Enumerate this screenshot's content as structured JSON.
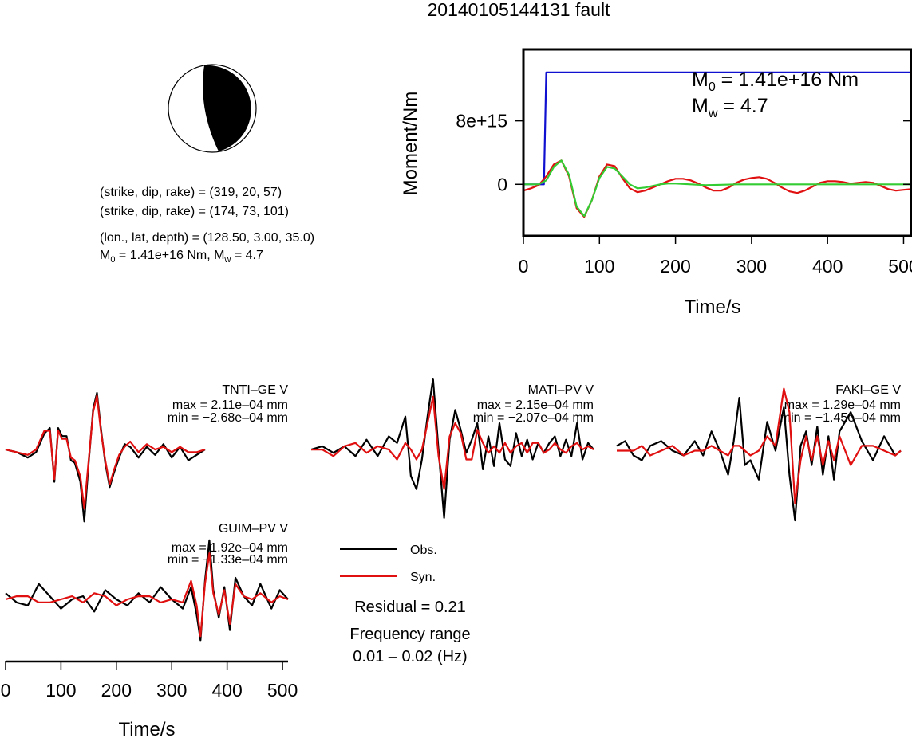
{
  "title": "20140105144131 fault",
  "mechanism": {
    "nodal_plane_1": "(strike, dip, rake) = (319, 20, 57)",
    "nodal_plane_2": "(strike, dip, rake) = (174, 73, 101)",
    "location": "(lon., lat, depth) = (128.50, 3.00, 35.0)",
    "moment_line": {
      "m0_label": "M",
      "m0_sub": "0",
      "m0_value": " = 1.41e+16 Nm, M",
      "mw_sub": "w",
      "mw_value": " = 4.7"
    }
  },
  "colors": {
    "cumulative_moment": "#1010d0",
    "moment_rate_red": "#e01010",
    "moment_rate_green": "#33cc33",
    "observed": "#000000",
    "synthetic": "#e01010",
    "beachball_compressional": "#000000",
    "beachball_dilatational": "#ffffff"
  },
  "chart_data": [
    {
      "type": "line",
      "id": "moment-function",
      "ylabel": "Moment/Nm",
      "xlabel": "Time/s",
      "xlim": [
        0,
        510
      ],
      "ylim": [
        -6500000000000000.0,
        1.7e+16
      ],
      "xticks": [
        "0",
        "100",
        "200",
        "300",
        "400",
        "500"
      ],
      "xtick_values": [
        0,
        100,
        200,
        300,
        400,
        500
      ],
      "yticks": [
        "0",
        "8e+15"
      ],
      "ytick_values": [
        0,
        8000000000000000.0
      ],
      "annotation": {
        "m0_label": "M",
        "m0_sub": "0",
        "m0_value": " = 1.41e+16 Nm",
        "mw_label": "M",
        "mw_sub": "w",
        "mw_value": " = 4.7"
      },
      "series": [
        {
          "color": "#1010d0",
          "x": [
            0,
            27,
            30,
            510
          ],
          "y": [
            0,
            0,
            1.41e+16,
            1.41e+16
          ]
        },
        {
          "color": "#e01010",
          "x": [
            0,
            10,
            20,
            30,
            40,
            50,
            60,
            70,
            80,
            90,
            100,
            110,
            120,
            130,
            140,
            150,
            160,
            170,
            180,
            190,
            200,
            210,
            220,
            230,
            240,
            250,
            260,
            270,
            280,
            290,
            300,
            310,
            320,
            330,
            340,
            350,
            360,
            370,
            380,
            390,
            400,
            410,
            420,
            430,
            440,
            450,
            460,
            470,
            480,
            490,
            500,
            510
          ],
          "y": [
            -800000000000000.0,
            -500000000000000.0,
            -100000000000000.0,
            1000000000000000.0,
            2500000000000000.0,
            3000000000000000.0,
            1000000000000000.0,
            -3000000000000000.0,
            -4100000000000000.0,
            -2000000000000000.0,
            1000000000000000.0,
            2500000000000000.0,
            2300000000000000.0,
            800000000000000.0,
            -500000000000000.0,
            -1000000000000000.0,
            -800000000000000.0,
            -400000000000000.0,
            0,
            400000000000000.0,
            700000000000000.0,
            700000000000000.0,
            500000000000000.0,
            100000000000000.0,
            -400000000000000.0,
            -800000000000000.0,
            -800000000000000.0,
            -400000000000000.0,
            200000000000000.0,
            600000000000000.0,
            800000000000000.0,
            900000000000000.0,
            700000000000000.0,
            200000000000000.0,
            -400000000000000.0,
            -900000000000000.0,
            -1100000000000000.0,
            -800000000000000.0,
            -300000000000000.0,
            200000000000000.0,
            400000000000000.0,
            400000000000000.0,
            300000000000000.0,
            100000000000000.0,
            200000000000000.0,
            300000000000000.0,
            200000000000000.0,
            -200000000000000.0,
            -600000000000000.0,
            -800000000000000.0,
            -700000000000000.0,
            -600000000000000.0
          ]
        },
        {
          "color": "#33cc33",
          "x": [
            0,
            10,
            20,
            30,
            40,
            50,
            60,
            70,
            80,
            90,
            100,
            110,
            120,
            130,
            140,
            150,
            160,
            170,
            180,
            190,
            200,
            220,
            240,
            260,
            280,
            300,
            510
          ],
          "y": [
            0,
            0,
            0,
            500000000000000.0,
            2200000000000000.0,
            3000000000000000.0,
            1200000000000000.0,
            -2800000000000000.0,
            -4000000000000000.0,
            -2000000000000000.0,
            800000000000000.0,
            2200000000000000.0,
            2000000000000000.0,
            1000000000000000.0,
            0,
            -500000000000000.0,
            -400000000000000.0,
            -200000000000000.0,
            0,
            100000000000000.0,
            100000000000000.0,
            0,
            -100000000000000.0,
            -50000000000000.0,
            0,
            0,
            0
          ]
        }
      ]
    },
    {
      "type": "line",
      "id": "waveform-TNTI-GE",
      "station": "TNTI–GE V",
      "max": "max = 2.11e–04 mm",
      "min": "min = −2.68e–04 mm",
      "xlim": [
        0,
        510
      ],
      "ylim": [
        -2.7,
        2.2
      ],
      "series": [
        {
          "name": "Obs.",
          "color": "#000000",
          "x": [
            0,
            20,
            40,
            55,
            70,
            80,
            88,
            95,
            102,
            110,
            118,
            125,
            135,
            142,
            150,
            158,
            165,
            172,
            180,
            188,
            195,
            205,
            215,
            225,
            240,
            255,
            270,
            285,
            300,
            315,
            330,
            345,
            360
          ],
          "y": [
            0,
            -0.1,
            -0.3,
            -0.1,
            0.6,
            0.8,
            -1.2,
            0.8,
            0.5,
            0.5,
            -0.4,
            -0.5,
            -1.2,
            -2.68,
            -0.5,
            1.5,
            2.11,
            0.8,
            -0.5,
            -1.4,
            -0.9,
            -0.3,
            0.2,
            0.1,
            -0.3,
            0.1,
            -0.2,
            0.2,
            -0.3,
            0.1,
            -0.4,
            -0.2,
            0
          ]
        },
        {
          "name": "Syn.",
          "color": "#e01010",
          "x": [
            0,
            20,
            40,
            55,
            70,
            80,
            88,
            95,
            102,
            110,
            118,
            125,
            135,
            142,
            150,
            158,
            165,
            172,
            180,
            188,
            195,
            205,
            215,
            225,
            240,
            255,
            270,
            285,
            300,
            315,
            330,
            345,
            360
          ],
          "y": [
            0,
            -0.1,
            -0.2,
            0,
            0.7,
            0.7,
            -1.1,
            0.7,
            0.4,
            0.4,
            -0.3,
            -0.4,
            -1,
            -2.2,
            -0.4,
            1.4,
            2,
            0.7,
            -0.4,
            -1.3,
            -0.8,
            -0.2,
            0.1,
            0.3,
            -0.1,
            0.2,
            0,
            0.1,
            -0.1,
            0.1,
            -0.1,
            -0.1,
            0
          ]
        }
      ]
    },
    {
      "type": "line",
      "id": "waveform-MATI-PV",
      "station": "MATI–PV V",
      "max": "max = 2.15e–04 mm",
      "min": "min = −2.07e–04 mm",
      "xlim": [
        0,
        510
      ],
      "ylim": [
        -2.1,
        2.2
      ],
      "series": [
        {
          "name": "Obs.",
          "color": "#000000",
          "x": [
            0,
            20,
            40,
            60,
            80,
            100,
            120,
            140,
            155,
            170,
            180,
            190,
            200,
            210,
            220,
            230,
            240,
            250,
            260,
            270,
            280,
            290,
            300,
            310,
            320,
            330,
            340,
            350,
            360,
            370,
            380,
            390,
            400,
            410,
            420,
            430,
            440,
            450,
            460,
            470,
            480,
            490,
            500,
            510
          ],
          "y": [
            0,
            0.1,
            -0.1,
            0.1,
            -0.2,
            0.3,
            -0.2,
            0.4,
            0.2,
            1,
            -0.8,
            -1.2,
            -0.3,
            1,
            2.15,
            0,
            -2.07,
            0.3,
            1.2,
            0.6,
            -0.1,
            0.3,
            0.8,
            -0.6,
            0.4,
            -0.5,
            0.8,
            -0.3,
            -0.5,
            0.5,
            -0.2,
            0.3,
            -0.3,
            0.2,
            -0.1,
            0.2,
            0.4,
            -0.2,
            0.3,
            -0.2,
            0.8,
            -0.3,
            0.2,
            0
          ]
        },
        {
          "name": "Syn.",
          "color": "#e01010",
          "x": [
            0,
            20,
            40,
            60,
            80,
            100,
            120,
            140,
            155,
            170,
            180,
            190,
            200,
            210,
            220,
            230,
            240,
            250,
            260,
            270,
            280,
            290,
            300,
            310,
            320,
            330,
            340,
            350,
            360,
            370,
            380,
            390,
            400,
            410,
            420,
            430,
            440,
            450,
            460,
            470,
            480,
            490,
            500,
            510
          ],
          "y": [
            0,
            0,
            -0.2,
            0.1,
            0.2,
            -0.1,
            0.1,
            0,
            -0.3,
            0.2,
            0,
            -0.3,
            0,
            0.8,
            1.6,
            -0.2,
            -1.2,
            0.4,
            0.8,
            0.5,
            -0.3,
            -0.3,
            0.6,
            0.2,
            -0.1,
            0.1,
            -0.1,
            0.2,
            -0.1,
            0.1,
            0.2,
            -0.1,
            0.2,
            0.2,
            -0.1,
            0,
            0.2,
            0,
            -0.1,
            0.1,
            0.2,
            0,
            0.1,
            0
          ]
        }
      ]
    },
    {
      "type": "line",
      "id": "waveform-FAKI-GE",
      "station": "FAKI–GE V",
      "max": "max = 1.29e–04 mm",
      "min": "min = −1.45e–04 mm",
      "xlim": [
        0,
        510
      ],
      "ylim": [
        -1.5,
        1.35
      ],
      "series": [
        {
          "name": "Obs.",
          "color": "#000000",
          "x": [
            0,
            15,
            30,
            45,
            60,
            80,
            100,
            120,
            140,
            155,
            170,
            185,
            200,
            210,
            220,
            230,
            240,
            255,
            270,
            285,
            300,
            310,
            320,
            330,
            340,
            350,
            360,
            370,
            380,
            390,
            400,
            420,
            440,
            460,
            480,
            500,
            510
          ],
          "y": [
            0.1,
            0.2,
            -0.1,
            -0.2,
            0.1,
            0.2,
            0,
            -0.1,
            0.2,
            -0.1,
            0.4,
            0,
            -0.5,
            0.2,
            1.1,
            -0.3,
            -0.2,
            -0.6,
            0.6,
            0,
            0.9,
            -0.5,
            -1.45,
            0.1,
            0.4,
            -0.3,
            0.5,
            -0.5,
            0.3,
            -0.6,
            0.4,
            0.8,
            0.2,
            -0.2,
            0.3,
            -0.1,
            0
          ]
        },
        {
          "name": "Syn.",
          "color": "#e01010",
          "x": [
            0,
            15,
            30,
            45,
            60,
            80,
            100,
            120,
            140,
            155,
            170,
            185,
            200,
            210,
            220,
            230,
            240,
            255,
            270,
            285,
            300,
            310,
            320,
            330,
            340,
            350,
            360,
            370,
            380,
            390,
            400,
            420,
            440,
            460,
            480,
            500,
            510
          ],
          "y": [
            0,
            0,
            0,
            0.1,
            -0.1,
            0,
            0.1,
            -0.1,
            0,
            0,
            0.1,
            0,
            -0.1,
            0.1,
            0.1,
            0,
            -0.1,
            0,
            0.3,
            0.1,
            1.29,
            0.8,
            -1.1,
            -0.2,
            0.3,
            -0.2,
            0.3,
            -0.3,
            0.2,
            -0.2,
            0.3,
            -0.3,
            0.1,
            0.1,
            0,
            -0.1,
            0
          ]
        }
      ]
    },
    {
      "type": "line",
      "id": "waveform-GUIM-PV",
      "station": "GUIM–PV V",
      "max": "max = 1.92e–04 mm",
      "min": "min = −1.33e–04 mm",
      "xlabel": "Time/s",
      "xlim": [
        0,
        510
      ],
      "ylim": [
        -1.4,
        2.1
      ],
      "xticks": [
        "0",
        "100",
        "200",
        "300",
        "400",
        "500"
      ],
      "xtick_values": [
        0,
        100,
        200,
        300,
        400,
        500
      ],
      "series": [
        {
          "name": "Obs.",
          "color": "#000000",
          "x": [
            0,
            20,
            40,
            60,
            80,
            100,
            120,
            140,
            160,
            180,
            200,
            220,
            240,
            260,
            280,
            300,
            320,
            335,
            345,
            352,
            360,
            368,
            375,
            385,
            395,
            405,
            415,
            430,
            445,
            460,
            480,
            495,
            510
          ],
          "y": [
            0.2,
            -0.1,
            -0.2,
            0.5,
            0.1,
            -0.3,
            0,
            0.1,
            -0.4,
            0.3,
            0,
            -0.2,
            0.2,
            -0.1,
            0.4,
            0,
            -0.3,
            0.4,
            -0.5,
            -1.33,
            0.6,
            1.92,
            0.3,
            -0.6,
            0.4,
            -1,
            0.7,
            0.1,
            -0.2,
            0.5,
            -0.3,
            0.3,
            0
          ]
        },
        {
          "name": "Syn.",
          "color": "#e01010",
          "x": [
            0,
            20,
            40,
            60,
            80,
            100,
            120,
            140,
            160,
            180,
            200,
            220,
            240,
            260,
            280,
            300,
            320,
            335,
            345,
            352,
            360,
            368,
            375,
            385,
            395,
            405,
            415,
            430,
            445,
            460,
            480,
            495,
            510
          ],
          "y": [
            0,
            0.1,
            0.1,
            -0.1,
            -0.1,
            0,
            0.1,
            -0.1,
            0.2,
            0.1,
            -0.2,
            0,
            0.1,
            0.1,
            -0.1,
            0,
            -0.1,
            0.6,
            -0.2,
            -1.2,
            0.5,
            1.5,
            0.2,
            -0.5,
            0.3,
            -0.8,
            0.5,
            0.1,
            0,
            0.2,
            -0.1,
            0.1,
            0
          ]
        }
      ]
    }
  ],
  "legend": {
    "obs_label": "Obs.",
    "syn_label": "Syn."
  },
  "residual": "Residual = 0.21",
  "frequency_label": "Frequency range",
  "frequency_range": "0.01 – 0.02 (Hz)"
}
